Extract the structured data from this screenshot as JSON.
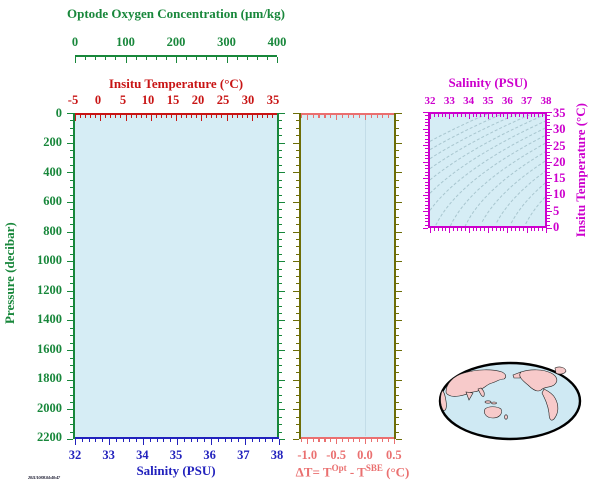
{
  "colors": {
    "green": "#18873b",
    "red": "#c81414",
    "blue": "#2222bd",
    "magenta": "#cd00cd",
    "salmon": "#ea7070",
    "olive": "#6d6d07",
    "plot_fill": "#d6edf5",
    "guide_line": "#c3dde8",
    "contour": "#a8c6cf",
    "map_land": "#f7caca",
    "map_ocean": "#cfe9f3",
    "map_outline": "#000000"
  },
  "oxygen_axis": {
    "title": "Optode Oxygen Concentration (µm/kg)",
    "ticks": [
      "0",
      "100",
      "200",
      "300",
      "400"
    ]
  },
  "temp_axis": {
    "title": "Insitu Temperature (°C)",
    "ticks": [
      "-5",
      "0",
      "5",
      "10",
      "15",
      "20",
      "25",
      "30",
      "35"
    ]
  },
  "pressure_axis": {
    "title": "Pressure (decibar)",
    "ticks": [
      "0",
      "200",
      "400",
      "600",
      "800",
      "1000",
      "1200",
      "1400",
      "1600",
      "1800",
      "2000",
      "2200"
    ]
  },
  "salinity_axis": {
    "title": "Salinity (PSU)",
    "ticks": [
      "32",
      "33",
      "34",
      "35",
      "36",
      "37",
      "38"
    ]
  },
  "delta_axis": {
    "label_pre": "ΔT= T",
    "label_sup1": "Opt",
    "label_mid": " - T",
    "label_sup2": "SBE",
    "label_post": " (°C)",
    "ticks": [
      "-1.0",
      "-0.5",
      "0.0",
      "0.5"
    ]
  },
  "ts_plot": {
    "top_title": "Salinity (PSU)",
    "top_ticks": [
      "32",
      "33",
      "34",
      "35",
      "36",
      "37",
      "38"
    ],
    "right_title": "Insitu Temperature (°C)",
    "right_ticks": [
      "35",
      "30",
      "25",
      "20",
      "15",
      "10",
      "5",
      "0"
    ]
  },
  "stamp": "2011/10/08.04:40:47",
  "chart_data": [
    {
      "type": "scatter",
      "panel": "main-profile",
      "xlabel": "Salinity (PSU)",
      "ylabel": "Pressure (decibar)",
      "x2label": "Insitu Temperature (°C)",
      "x3label": "Optode Oxygen Concentration (µm/kg)",
      "xlim": [
        32,
        38
      ],
      "ylim": [
        2200,
        0
      ],
      "x2lim": [
        -5,
        35
      ],
      "x3lim": [
        0,
        400
      ],
      "x_ticks": [
        32,
        33,
        34,
        35,
        36,
        37,
        38
      ],
      "y_ticks": [
        0,
        200,
        400,
        600,
        800,
        1000,
        1200,
        1400,
        1600,
        1800,
        2000,
        2200
      ],
      "x2_ticks": [
        -5,
        0,
        5,
        10,
        15,
        20,
        25,
        30,
        35
      ],
      "x3_ticks": [
        0,
        100,
        200,
        300,
        400
      ],
      "grid": false,
      "series": []
    },
    {
      "type": "scatter",
      "panel": "delta-T",
      "xlabel": "ΔT= T^Opt - T^SBE (°C)",
      "xlim": [
        -1.1,
        0.5
      ],
      "ylim": [
        2200,
        0
      ],
      "x_ticks": [
        -1.0,
        -0.5,
        0.0,
        0.5
      ],
      "reference_line_x": 0.0,
      "grid": false,
      "series": []
    },
    {
      "type": "line",
      "panel": "T-S-diagram",
      "xlabel": "Salinity (PSU)",
      "ylabel": "Insitu Temperature (°C)",
      "xlim": [
        32,
        38
      ],
      "ylim": [
        0,
        35
      ],
      "x_ticks": [
        32,
        33,
        34,
        35,
        36,
        37,
        38
      ],
      "y_ticks": [
        0,
        5,
        10,
        15,
        20,
        25,
        30,
        35
      ],
      "annotations": "family of ~14 dashed isopycnal (density) contour curves rising from lower-left to upper-right",
      "series": []
    },
    {
      "type": "map",
      "panel": "location-inset",
      "projection": "oval world map, Pacific-centered",
      "markers": []
    }
  ]
}
